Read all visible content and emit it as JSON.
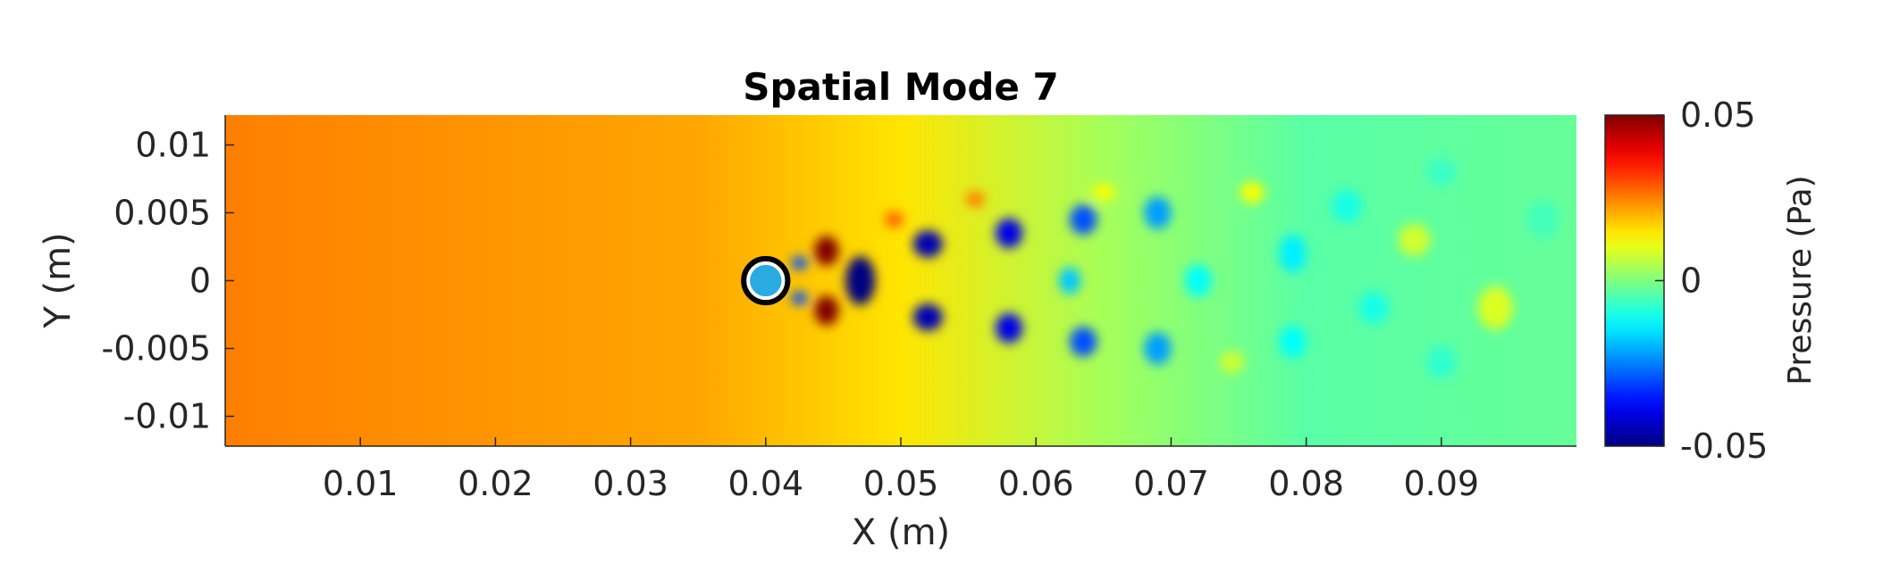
{
  "chart_data": {
    "type": "heatmap",
    "title": "Spatial Mode 7",
    "xlabel": "X (m)",
    "ylabel": "Y (m)",
    "xlim": [
      0,
      0.1
    ],
    "ylim": [
      -0.0122,
      0.0122
    ],
    "x_ticks": [
      0.01,
      0.02,
      0.03,
      0.04,
      0.05,
      0.06,
      0.07,
      0.08,
      0.09
    ],
    "x_tick_labels": [
      "0.01",
      "0.02",
      "0.03",
      "0.04",
      "0.05",
      "0.06",
      "0.07",
      "0.08",
      "0.09"
    ],
    "y_ticks": [
      0.01,
      0.005,
      0,
      -0.005,
      -0.01
    ],
    "y_tick_labels": [
      "0.01",
      "0.005",
      "0",
      "-0.005",
      "-0.01"
    ],
    "colorbar": {
      "label": "Pressure (Pa)",
      "colormap": "jet",
      "clim": [
        -0.05,
        0.05
      ],
      "ticks": [
        0.05,
        0,
        -0.05
      ],
      "tick_labels": [
        "0.05",
        "0",
        "-0.05"
      ]
    },
    "cylinder": {
      "x": 0.04,
      "y": 0,
      "diameter": 0.0026
    },
    "background_level": 0.025,
    "structures": [
      {
        "x": 0.0445,
        "y": 0.0022,
        "value": 0.05,
        "sx": 0.0009,
        "sy": 0.0011
      },
      {
        "x": 0.0445,
        "y": -0.0022,
        "value": 0.05,
        "sx": 0.0009,
        "sy": 0.0011
      },
      {
        "x": 0.047,
        "y": 0.0,
        "value": -0.05,
        "sx": 0.0011,
        "sy": 0.0018
      },
      {
        "x": 0.0425,
        "y": 0.0013,
        "value": -0.03,
        "sx": 0.0006,
        "sy": 0.0005
      },
      {
        "x": 0.0425,
        "y": -0.0013,
        "value": -0.03,
        "sx": 0.0006,
        "sy": 0.0005
      },
      {
        "x": 0.052,
        "y": 0.0027,
        "value": -0.045,
        "sx": 0.0011,
        "sy": 0.001
      },
      {
        "x": 0.052,
        "y": -0.0027,
        "value": -0.045,
        "sx": 0.0011,
        "sy": 0.001
      },
      {
        "x": 0.0495,
        "y": 0.0045,
        "value": 0.028,
        "sx": 0.0007,
        "sy": 0.0006
      },
      {
        "x": 0.0555,
        "y": 0.006,
        "value": 0.025,
        "sx": 0.0007,
        "sy": 0.0006
      },
      {
        "x": 0.058,
        "y": 0.0035,
        "value": -0.04,
        "sx": 0.001,
        "sy": 0.0011
      },
      {
        "x": 0.058,
        "y": -0.0035,
        "value": -0.04,
        "sx": 0.001,
        "sy": 0.0011
      },
      {
        "x": 0.0635,
        "y": 0.0045,
        "value": -0.03,
        "sx": 0.001,
        "sy": 0.0011
      },
      {
        "x": 0.0635,
        "y": -0.0045,
        "value": -0.03,
        "sx": 0.001,
        "sy": 0.0011
      },
      {
        "x": 0.0625,
        "y": 0.0,
        "value": -0.018,
        "sx": 0.0008,
        "sy": 0.001
      },
      {
        "x": 0.065,
        "y": 0.0065,
        "value": 0.012,
        "sx": 0.0009,
        "sy": 0.0006
      },
      {
        "x": 0.069,
        "y": 0.005,
        "value": -0.022,
        "sx": 0.001,
        "sy": 0.0012
      },
      {
        "x": 0.069,
        "y": -0.005,
        "value": -0.022,
        "sx": 0.001,
        "sy": 0.0012
      },
      {
        "x": 0.072,
        "y": 0.0,
        "value": -0.012,
        "sx": 0.001,
        "sy": 0.0012
      },
      {
        "x": 0.076,
        "y": 0.0065,
        "value": 0.012,
        "sx": 0.0009,
        "sy": 0.0008
      },
      {
        "x": 0.0745,
        "y": -0.006,
        "value": 0.008,
        "sx": 0.0009,
        "sy": 0.0008
      },
      {
        "x": 0.079,
        "y": 0.002,
        "value": -0.014,
        "sx": 0.001,
        "sy": 0.0014
      },
      {
        "x": 0.079,
        "y": -0.0045,
        "value": -0.012,
        "sx": 0.001,
        "sy": 0.0012
      },
      {
        "x": 0.083,
        "y": 0.0055,
        "value": -0.01,
        "sx": 0.0011,
        "sy": 0.0012
      },
      {
        "x": 0.085,
        "y": -0.002,
        "value": -0.01,
        "sx": 0.0011,
        "sy": 0.0012
      },
      {
        "x": 0.088,
        "y": 0.003,
        "value": 0.008,
        "sx": 0.0012,
        "sy": 0.0012
      },
      {
        "x": 0.09,
        "y": -0.006,
        "value": -0.008,
        "sx": 0.0011,
        "sy": 0.0012
      },
      {
        "x": 0.09,
        "y": 0.008,
        "value": -0.007,
        "sx": 0.0011,
        "sy": 0.001
      },
      {
        "x": 0.094,
        "y": -0.002,
        "value": 0.009,
        "sx": 0.0013,
        "sy": 0.0016
      },
      {
        "x": 0.0975,
        "y": 0.0045,
        "value": -0.006,
        "sx": 0.0012,
        "sy": 0.0014
      }
    ]
  }
}
